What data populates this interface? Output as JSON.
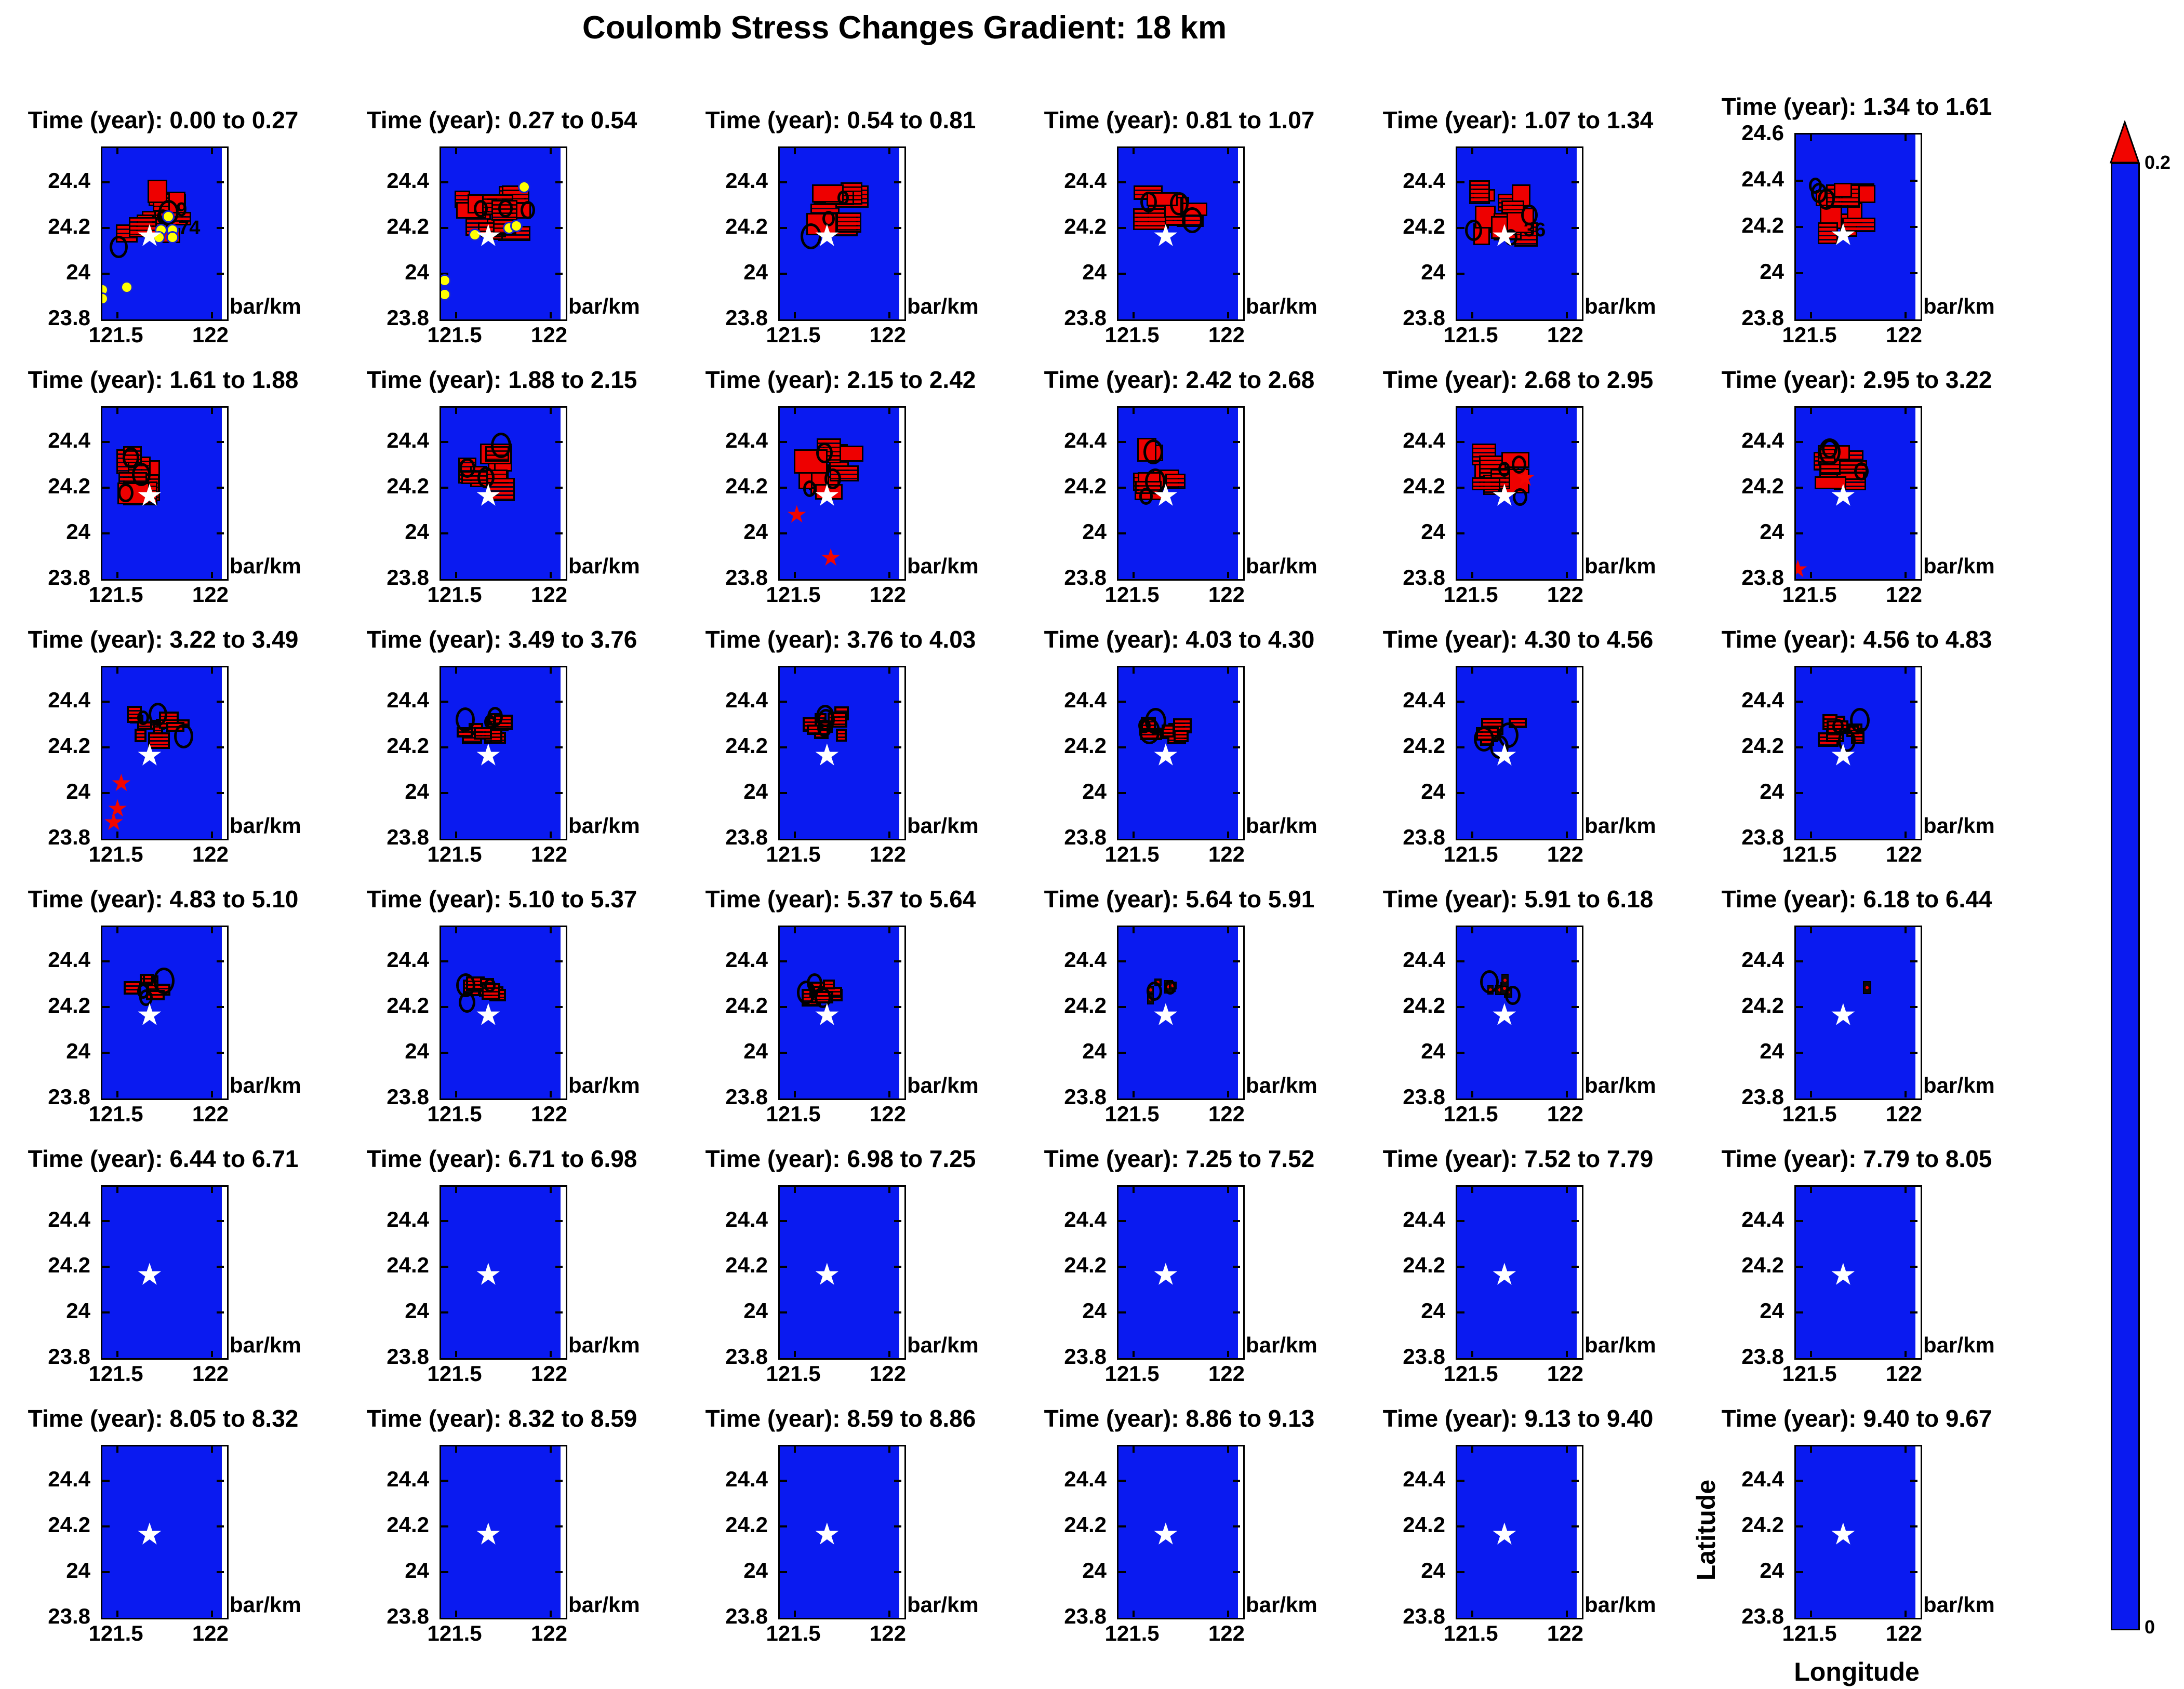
{
  "figure": {
    "title": "Coulomb Stress Changes Gradient: 18 km"
  },
  "colorbar": {
    "max_label": "0.2",
    "min_label": "0",
    "bar_color": "#0a1af0",
    "arrow_color": "#f20500"
  },
  "chart_data": {
    "type": "heatmap",
    "title": "Coulomb Stress Changes Gradient: 18 km",
    "xlabel": "Longitude",
    "ylabel": "Latitude",
    "unit_label": "bar/km",
    "grid": {
      "rows": 6,
      "cols": 6
    },
    "xlim": [
      121.42,
      122.08
    ],
    "x_ticks": [
      121.5,
      122
    ],
    "ylim_default": [
      23.8,
      24.55
    ],
    "y_ticks_default": [
      23.8,
      24,
      24.2,
      24.4
    ],
    "colorbar_range": [
      0,
      0.2
    ],
    "colorbar_position": "right",
    "epicenter": {
      "lon": 121.67,
      "lat": 24.16,
      "marker": "white-star"
    },
    "colors": {
      "sea": "#0a1af0",
      "stress_high": "#ee0000",
      "contour": "#000000",
      "event_dot": "#ffff00",
      "aftershock_star": "#f20500",
      "epicenter_star": "#ffffff"
    },
    "subplots": [
      {
        "title": "Time (year): 0.00 to 0.27",
        "cluster": {
          "cx": 121.68,
          "cy": 24.26,
          "rx": 0.15,
          "ry": 0.11,
          "blocks": 14,
          "style": "red"
        },
        "yellow_dots": [
          [
            121.77,
            24.25
          ],
          [
            121.73,
            24.19
          ],
          [
            121.79,
            24.19
          ],
          [
            121.72,
            24.16
          ],
          [
            121.79,
            24.16
          ],
          [
            121.42,
            23.93
          ],
          [
            121.55,
            23.94
          ],
          [
            121.42,
            23.89
          ]
        ],
        "red_stars": [],
        "contour_labels": [
          {
            "text": "9",
            "lon": 121.84,
            "lat": 24.28
          },
          {
            "text": "74",
            "lon": 121.88,
            "lat": 24.2
          }
        ]
      },
      {
        "title": "Time (year): 0.27 to 0.54",
        "cluster": {
          "cx": 121.68,
          "cy": 24.26,
          "rx": 0.16,
          "ry": 0.12,
          "blocks": 15,
          "style": "red"
        },
        "yellow_dots": [
          [
            121.86,
            24.38
          ],
          [
            121.78,
            24.2
          ],
          [
            121.82,
            24.21
          ],
          [
            121.6,
            24.17
          ],
          [
            121.44,
            23.97
          ],
          [
            121.44,
            23.91
          ]
        ],
        "red_stars": [],
        "contour_labels": []
      },
      {
        "title": "Time (year): 0.54 to 0.81",
        "cluster": {
          "cx": 121.7,
          "cy": 24.29,
          "rx": 0.11,
          "ry": 0.09,
          "blocks": 10,
          "style": "red"
        },
        "yellow_dots": [],
        "red_stars": [],
        "contour_labels": []
      },
      {
        "title": "Time (year): 0.81 to 1.07",
        "cluster": {
          "cx": 121.69,
          "cy": 24.29,
          "rx": 0.12,
          "ry": 0.09,
          "blocks": 11,
          "style": "red"
        },
        "yellow_dots": [],
        "red_stars": [],
        "contour_labels": []
      },
      {
        "title": "Time (year): 1.07 to 1.34",
        "cluster": {
          "cx": 121.66,
          "cy": 24.27,
          "rx": 0.13,
          "ry": 0.1,
          "blocks": 13,
          "style": "red"
        },
        "yellow_dots": [],
        "red_stars": [],
        "contour_labels": [
          {
            "text": "36",
            "lon": 121.83,
            "lat": 24.19
          }
        ]
      },
      {
        "title": "Time (year): 1.34 to 1.61",
        "ylim": [
          23.8,
          24.6
        ],
        "y_ticks": [
          23.8,
          24,
          24.2,
          24.4,
          24.6
        ],
        "cluster": {
          "cx": 121.67,
          "cy": 24.27,
          "rx": 0.12,
          "ry": 0.1,
          "blocks": 12,
          "style": "red"
        },
        "yellow_dots": [],
        "red_stars": [],
        "contour_labels": []
      },
      {
        "title": "Time (year): 1.61 to 1.88",
        "cluster": {
          "cx": 121.63,
          "cy": 24.26,
          "rx": 0.11,
          "ry": 0.1,
          "blocks": 10,
          "style": "red"
        },
        "yellow_dots": [],
        "red_stars": [],
        "contour_labels": []
      },
      {
        "title": "Time (year): 1.88 to 2.15",
        "cluster": {
          "cx": 121.66,
          "cy": 24.28,
          "rx": 0.11,
          "ry": 0.09,
          "blocks": 10,
          "style": "red"
        },
        "yellow_dots": [],
        "red_stars": [],
        "contour_labels": []
      },
      {
        "title": "Time (year): 2.15 to 2.42",
        "cluster": {
          "cx": 121.68,
          "cy": 24.28,
          "rx": 0.12,
          "ry": 0.1,
          "blocks": 11,
          "style": "red"
        },
        "yellow_dots": [],
        "red_stars": [
          [
            121.51,
            24.08
          ],
          [
            121.69,
            23.89
          ]
        ],
        "contour_labels": []
      },
      {
        "title": "Time (year): 2.42 to 2.68",
        "cluster": {
          "cx": 121.65,
          "cy": 24.28,
          "rx": 0.09,
          "ry": 0.09,
          "blocks": 9,
          "style": "red"
        },
        "yellow_dots": [],
        "red_stars": [],
        "contour_labels": []
      },
      {
        "title": "Time (year): 2.68 to 2.95",
        "cluster": {
          "cx": 121.64,
          "cy": 24.28,
          "rx": 0.1,
          "ry": 0.09,
          "blocks": 10,
          "style": "red"
        },
        "yellow_dots": [],
        "red_stars": [
          [
            121.78,
            24.24
          ]
        ],
        "contour_labels": []
      },
      {
        "title": "Time (year): 2.95 to 3.22",
        "cluster": {
          "cx": 121.66,
          "cy": 24.28,
          "rx": 0.09,
          "ry": 0.08,
          "blocks": 10,
          "style": "red"
        },
        "yellow_dots": [],
        "red_stars": [
          [
            121.43,
            23.84
          ]
        ],
        "contour_labels": []
      },
      {
        "title": "Time (year): 3.22 to 3.49",
        "cluster": {
          "cx": 121.7,
          "cy": 24.28,
          "rx": 0.13,
          "ry": 0.07,
          "blocks": 11,
          "style": "red-dark"
        },
        "yellow_dots": [],
        "red_stars": [
          [
            121.52,
            24.04
          ],
          [
            121.5,
            23.93
          ],
          [
            121.48,
            23.87
          ]
        ],
        "contour_labels": []
      },
      {
        "title": "Time (year): 3.49 to 3.76",
        "cluster": {
          "cx": 121.65,
          "cy": 24.29,
          "rx": 0.11,
          "ry": 0.06,
          "blocks": 10,
          "style": "red-dark"
        },
        "yellow_dots": [],
        "red_stars": [],
        "contour_labels": []
      },
      {
        "title": "Time (year): 3.76 to 4.03",
        "cluster": {
          "cx": 121.66,
          "cy": 24.29,
          "rx": 0.1,
          "ry": 0.06,
          "blocks": 9,
          "style": "red-dark"
        },
        "yellow_dots": [],
        "red_stars": [],
        "contour_labels": []
      },
      {
        "title": "Time (year): 4.03 to 4.30",
        "cluster": {
          "cx": 121.66,
          "cy": 24.27,
          "rx": 0.1,
          "ry": 0.05,
          "blocks": 9,
          "style": "red-dark"
        },
        "yellow_dots": [],
        "red_stars": [],
        "contour_labels": []
      },
      {
        "title": "Time (year): 4.30 to 4.56",
        "cluster": {
          "cx": 121.65,
          "cy": 24.26,
          "rx": 0.09,
          "ry": 0.05,
          "blocks": 8,
          "style": "red-dark"
        },
        "yellow_dots": [],
        "red_stars": [],
        "contour_labels": []
      },
      {
        "title": "Time (year): 4.56 to 4.83",
        "cluster": {
          "cx": 121.66,
          "cy": 24.27,
          "rx": 0.09,
          "ry": 0.05,
          "blocks": 8,
          "style": "red-dark"
        },
        "yellow_dots": [],
        "red_stars": [],
        "contour_labels": []
      },
      {
        "title": "Time (year): 4.83 to 5.10",
        "cluster": {
          "cx": 121.65,
          "cy": 24.28,
          "rx": 0.09,
          "ry": 0.04,
          "blocks": 7,
          "style": "red-dark"
        },
        "yellow_dots": [],
        "red_stars": [],
        "contour_labels": []
      },
      {
        "title": "Time (year): 5.10 to 5.37",
        "cluster": {
          "cx": 121.64,
          "cy": 24.27,
          "rx": 0.08,
          "ry": 0.04,
          "blocks": 7,
          "style": "red-dark"
        },
        "yellow_dots": [],
        "red_stars": [],
        "contour_labels": []
      },
      {
        "title": "Time (year): 5.37 to 5.64",
        "cluster": {
          "cx": 121.66,
          "cy": 24.27,
          "rx": 0.08,
          "ry": 0.04,
          "blocks": 7,
          "style": "red-dark"
        },
        "yellow_dots": [],
        "red_stars": [],
        "contour_labels": []
      },
      {
        "title": "Time (year): 5.64 to 5.91",
        "cluster": {
          "cx": 121.64,
          "cy": 24.27,
          "rx": 0.09,
          "ry": 0.04,
          "blocks": 6,
          "style": "black-tiny"
        },
        "yellow_dots": [],
        "red_stars": [],
        "contour_labels": []
      },
      {
        "title": "Time (year): 5.91 to 6.18",
        "cluster": {
          "cx": 121.66,
          "cy": 24.28,
          "rx": 0.08,
          "ry": 0.04,
          "blocks": 5,
          "style": "black-tiny"
        },
        "yellow_dots": [],
        "red_stars": [],
        "contour_labels": []
      },
      {
        "title": "Time (year): 6.18 to 6.44",
        "cluster": {
          "cx": 121.8,
          "cy": 24.28,
          "rx": 0.005,
          "ry": 0.008,
          "blocks": 1,
          "style": "black-tiny"
        },
        "yellow_dots": [],
        "red_stars": [],
        "contour_labels": []
      },
      {
        "title": "Time (year): 6.44 to 6.71",
        "cluster": null,
        "yellow_dots": [],
        "red_stars": [],
        "contour_labels": []
      },
      {
        "title": "Time (year): 6.71 to 6.98",
        "cluster": null,
        "yellow_dots": [],
        "red_stars": [],
        "contour_labels": []
      },
      {
        "title": "Time (year): 6.98 to 7.25",
        "cluster": null,
        "yellow_dots": [],
        "red_stars": [],
        "contour_labels": []
      },
      {
        "title": "Time (year): 7.25 to 7.52",
        "cluster": null,
        "yellow_dots": [],
        "red_stars": [],
        "contour_labels": []
      },
      {
        "title": "Time (year): 7.52 to 7.79",
        "cluster": null,
        "yellow_dots": [],
        "red_stars": [],
        "contour_labels": []
      },
      {
        "title": "Time (year): 7.79 to 8.05",
        "cluster": null,
        "yellow_dots": [],
        "red_stars": [],
        "contour_labels": []
      },
      {
        "title": "Time (year): 8.05 to 8.32",
        "cluster": null,
        "yellow_dots": [],
        "red_stars": [],
        "contour_labels": []
      },
      {
        "title": "Time (year): 8.32 to 8.59",
        "cluster": null,
        "yellow_dots": [],
        "red_stars": [],
        "contour_labels": []
      },
      {
        "title": "Time (year): 8.59 to 8.86",
        "cluster": null,
        "yellow_dots": [],
        "red_stars": [],
        "contour_labels": []
      },
      {
        "title": "Time (year): 8.86 to 9.13",
        "cluster": null,
        "yellow_dots": [],
        "red_stars": [],
        "contour_labels": []
      },
      {
        "title": "Time (year): 9.13 to 9.40",
        "cluster": null,
        "yellow_dots": [],
        "red_stars": [],
        "contour_labels": []
      },
      {
        "title": "Time (year): 9.40 to 9.67",
        "cluster": null,
        "yellow_dots": [],
        "red_stars": [],
        "contour_labels": [],
        "axis_labels": true
      }
    ]
  }
}
